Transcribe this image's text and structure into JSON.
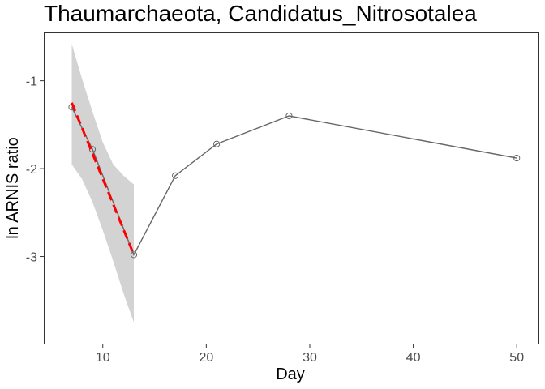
{
  "chart_data": {
    "type": "line",
    "title": "Thaumarchaeota, Candidatus_Nitrosotalea",
    "xlabel": "Day",
    "ylabel": "ln ARNIS ratio",
    "xlim": [
      4.3,
      52.1
    ],
    "ylim": [
      -4.0,
      -0.45
    ],
    "xticks": [
      10,
      20,
      30,
      40,
      50
    ],
    "yticks": [
      -1,
      -2,
      -3
    ],
    "grid": false,
    "series": [
      {
        "style": "observed",
        "color": "#666666",
        "x": [
          7,
          9,
          13,
          17,
          21,
          28,
          50
        ],
        "y": [
          -1.3,
          -1.78,
          -2.98,
          -2.08,
          -1.72,
          -1.4,
          -1.88
        ]
      }
    ],
    "fit": {
      "style": "dashed regression",
      "color": "#ff0000",
      "x": [
        7,
        13
      ],
      "y": [
        -1.25,
        -2.98
      ]
    },
    "ribbon": {
      "color": "#d3d3d3",
      "x": [
        7,
        8,
        9,
        10,
        11,
        12,
        13
      ],
      "lower": [
        -1.95,
        -2.12,
        -2.38,
        -2.7,
        -3.05,
        -3.42,
        -3.75
      ],
      "upper": [
        -0.58,
        -0.98,
        -1.35,
        -1.7,
        -1.95,
        -2.08,
        -2.18
      ]
    }
  }
}
